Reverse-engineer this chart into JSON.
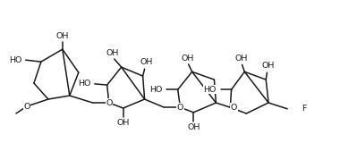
{
  "bg_color": "#ffffff",
  "line_color": "#1a1a1a",
  "line_width": 1.1,
  "font_size": 6.8,
  "fig_width": 3.99,
  "fig_height": 1.69,
  "dpi": 100,
  "xlim": [
    0,
    10
  ],
  "ylim": [
    0,
    4.23
  ]
}
